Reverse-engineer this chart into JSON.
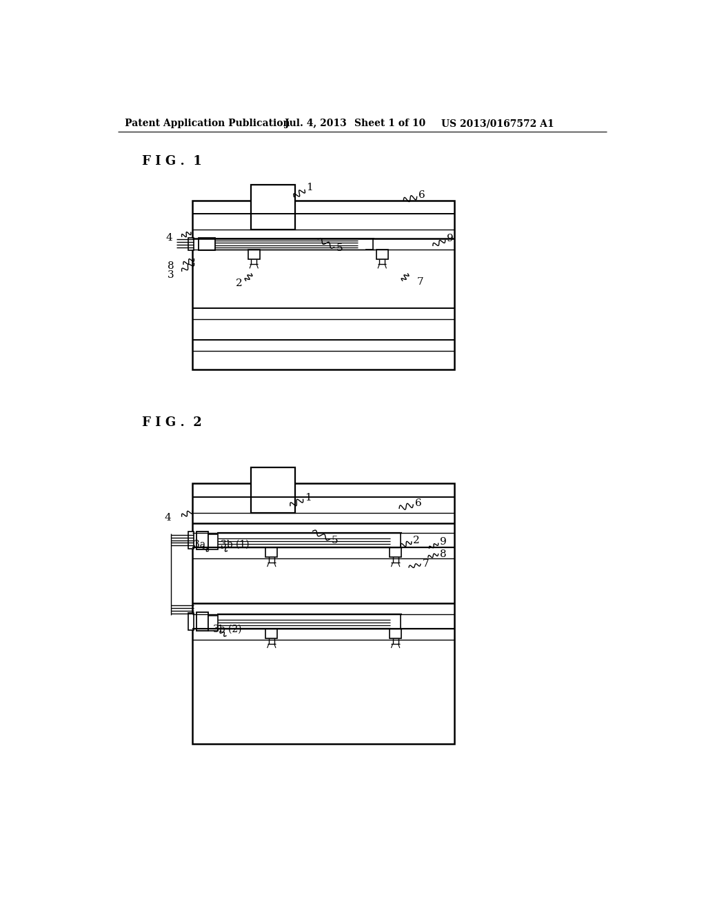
{
  "background_color": "#ffffff",
  "header_text": "Patent Application Publication",
  "header_date": "Jul. 4, 2013",
  "header_sheet": "Sheet 1 of 10",
  "header_patent": "US 2013/0167572 A1",
  "fig1_label": "F I G .  1",
  "fig2_label": "F I G .  2"
}
